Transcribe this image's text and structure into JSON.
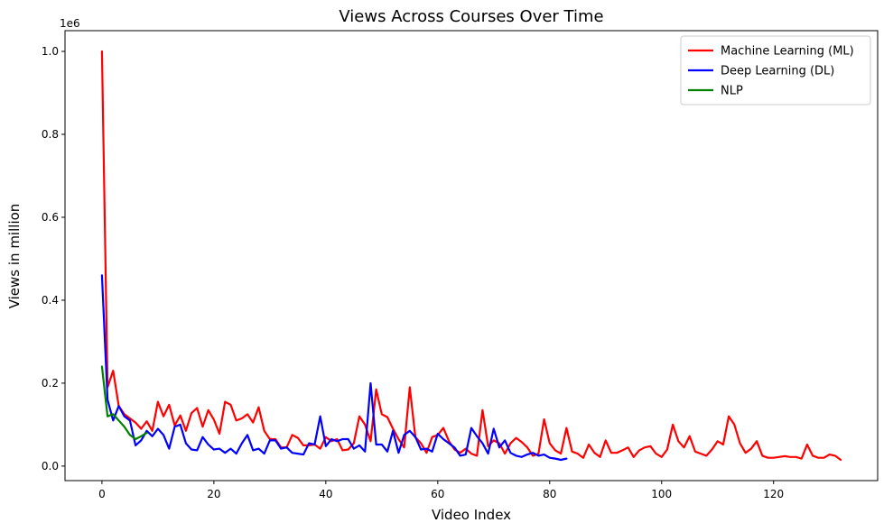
{
  "chart_data": {
    "type": "line",
    "title": "Views Across Courses Over Time",
    "xlabel": "Video Index",
    "ylabel": "Views in million",
    "offset_label": "1e6",
    "xlim": [
      -6.6,
      138.6
    ],
    "ylim": [
      -35000,
      1050000
    ],
    "x_ticks": [
      0,
      20,
      40,
      60,
      80,
      100,
      120
    ],
    "y_ticks": [
      0,
      200000,
      400000,
      600000,
      800000,
      1000000
    ],
    "y_tick_labels": [
      "0.0",
      "0.2",
      "0.4",
      "0.6",
      "0.8",
      "1.0"
    ],
    "grid": false,
    "legend_position": "top-right",
    "series": [
      {
        "name": "Machine Learning (ML)",
        "color": "#ff0000",
        "x_start": 0,
        "values": [
          1000000,
          190000,
          230000,
          145000,
          125000,
          115000,
          105000,
          90000,
          108000,
          85000,
          155000,
          120000,
          148000,
          98000,
          122000,
          85000,
          128000,
          140000,
          95000,
          135000,
          112000,
          78000,
          155000,
          148000,
          110000,
          115000,
          125000,
          105000,
          142000,
          85000,
          65000,
          65000,
          45000,
          45000,
          75000,
          68000,
          50000,
          50000,
          52000,
          42000,
          70000,
          60000,
          65000,
          38000,
          40000,
          55000,
          120000,
          100000,
          60000,
          185000,
          125000,
          118000,
          90000,
          65000,
          45000,
          190000,
          70000,
          55000,
          32000,
          70000,
          75000,
          92000,
          60000,
          40000,
          32000,
          42000,
          30000,
          25000,
          135000,
          48000,
          62000,
          55000,
          30000,
          55000,
          68000,
          58000,
          45000,
          25000,
          30000,
          113000,
          55000,
          38000,
          30000,
          92000,
          35000,
          30000,
          20000,
          52000,
          32000,
          22000,
          62000,
          32000,
          32000,
          38000,
          45000,
          22000,
          38000,
          45000,
          48000,
          30000,
          22000,
          40000,
          100000,
          60000,
          45000,
          72000,
          35000,
          30000,
          25000,
          40000,
          60000,
          52000,
          120000,
          100000,
          55000,
          32000,
          42000,
          60000,
          25000,
          20000,
          20000,
          22000,
          24000,
          22000,
          22000,
          18000,
          52000,
          25000,
          20000,
          20000,
          28000,
          25000,
          15000
        ]
      },
      {
        "name": "Deep Learning (DL)",
        "color": "#0000ff",
        "x_start": 0,
        "values": [
          460000,
          160000,
          110000,
          145000,
          120000,
          110000,
          50000,
          62000,
          85000,
          72000,
          90000,
          75000,
          42000,
          95000,
          100000,
          55000,
          40000,
          38000,
          70000,
          52000,
          40000,
          42000,
          32000,
          42000,
          30000,
          55000,
          75000,
          38000,
          42000,
          30000,
          62000,
          62000,
          42000,
          45000,
          32000,
          30000,
          28000,
          55000,
          52000,
          120000,
          48000,
          65000,
          60000,
          65000,
          65000,
          42000,
          50000,
          35000,
          200000,
          52000,
          52000,
          35000,
          85000,
          32000,
          75000,
          85000,
          70000,
          40000,
          42000,
          35000,
          78000,
          65000,
          55000,
          45000,
          25000,
          28000,
          92000,
          72000,
          55000,
          30000,
          90000,
          45000,
          62000,
          32000,
          25000,
          22000,
          28000,
          32000,
          25000,
          28000,
          20000,
          18000,
          15000,
          18000
        ]
      },
      {
        "name": "NLP",
        "color": "#008000",
        "x_start": 0,
        "values": [
          240000,
          120000,
          125000,
          110000,
          95000,
          75000,
          65000,
          72000,
          80000
        ]
      }
    ]
  }
}
